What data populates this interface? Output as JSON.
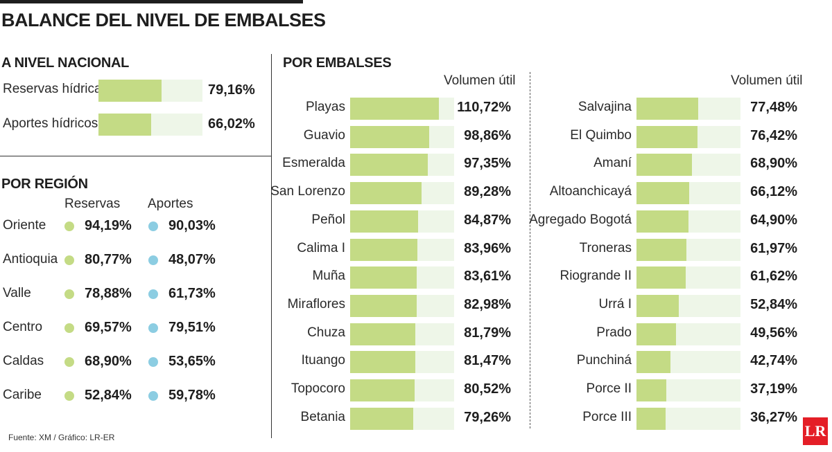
{
  "title": "BALANCE DEL NIVEL DE EMBALSES",
  "colors": {
    "bar_fill": "#c4db85",
    "bar_bg": "#eef6e8",
    "reservas_dot": "#c4db85",
    "aportes_dot": "#8ccde2",
    "logo": "#e41e26"
  },
  "national": {
    "heading": "A NIVEL NACIONAL",
    "items": [
      {
        "label": "Reservas hídricas",
        "value": 79.16,
        "value_text": "79,16%"
      },
      {
        "label": "Aportes hídricos",
        "value": 66.02,
        "value_text": "66,02%"
      }
    ]
  },
  "region": {
    "heading": "POR REGIÓN",
    "col_reservas": "Reservas",
    "col_aportes": "Aportes",
    "rows": [
      {
        "name": "Oriente",
        "reservas": "94,19%",
        "aportes": "90,03%"
      },
      {
        "name": "Antioquia",
        "reservas": "80,77%",
        "aportes": "48,07%"
      },
      {
        "name": "Valle",
        "reservas": "78,88%",
        "aportes": "61,73%"
      },
      {
        "name": "Centro",
        "reservas": "69,57%",
        "aportes": "79,51%"
      },
      {
        "name": "Caldas",
        "reservas": "68,90%",
        "aportes": "53,65%"
      },
      {
        "name": "Caribe",
        "reservas": "52,84%",
        "aportes": "59,78%"
      }
    ]
  },
  "embalses": {
    "heading": "POR EMBALSES",
    "col_head": "Volumen útil"
  },
  "chart_data": [
    {
      "type": "bar",
      "categories": [
        "Playas",
        "Guavio",
        "Esmeralda",
        "San Lorenzo",
        "Peñol",
        "Calima I",
        "Muña",
        "Miraflores",
        "Chuza",
        "Ituango",
        "Topocoro",
        "Betania"
      ],
      "values": [
        110.72,
        98.86,
        97.35,
        89.28,
        84.87,
        83.96,
        83.61,
        82.98,
        81.79,
        81.47,
        80.52,
        79.26
      ],
      "value_labels": [
        "110,72%",
        "98,86%",
        "97,35%",
        "89,28%",
        "84,87%",
        "83,96%",
        "83,61%",
        "82,98%",
        "81,79%",
        "81,47%",
        "80,52%",
        "79,26%"
      ],
      "ylabel": "Volumen útil",
      "xlim": [
        0,
        130
      ]
    },
    {
      "type": "bar",
      "categories": [
        "Salvajina",
        "El Quimbo",
        "Amaní",
        "Altoanchicayá",
        "Agregado Bogotá",
        "Troneras",
        "Riogrande II",
        "Urrá I",
        "Prado",
        "Punchiná",
        "Porce II",
        "Porce III"
      ],
      "values": [
        77.48,
        76.42,
        68.9,
        66.12,
        64.9,
        61.97,
        61.62,
        52.84,
        49.56,
        42.74,
        37.19,
        36.27
      ],
      "value_labels": [
        "77,48%",
        "76,42%",
        "68,90%",
        "66,12%",
        "64,90%",
        "61,97%",
        "61,62%",
        "52,84%",
        "49,56%",
        "42,74%",
        "37,19%",
        "36,27%"
      ],
      "ylabel": "Volumen útil",
      "xlim": [
        0,
        130
      ]
    }
  ],
  "source": "Fuente: XM / Gráfico: LR-ER",
  "logo_text": "LR"
}
